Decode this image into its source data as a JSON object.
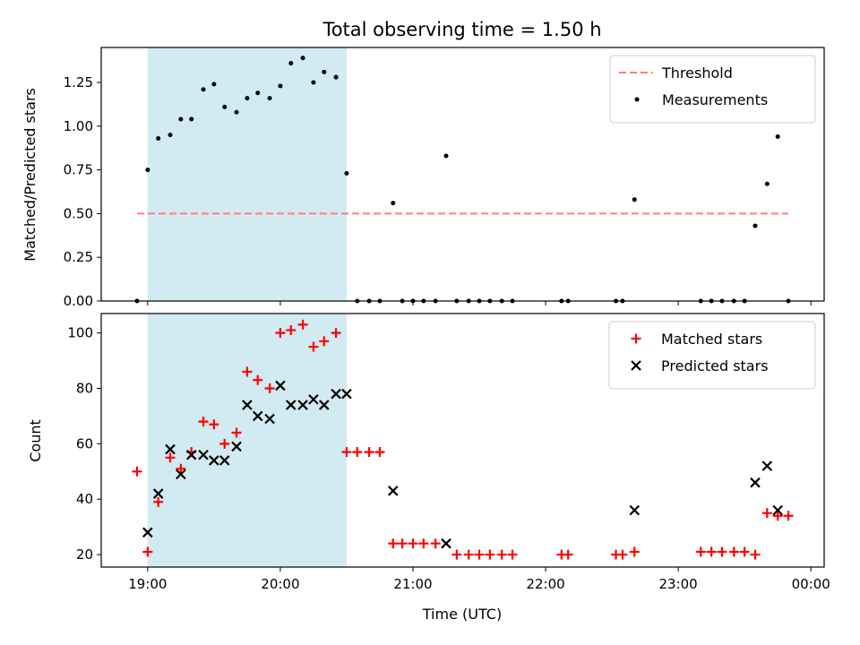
{
  "chart_data": [
    {
      "type": "scatter",
      "title": "Total observing time = 1.50 h",
      "ylabel": "Matched/Predicted stars",
      "xlabel": "",
      "ylim": [
        0,
        1.45
      ],
      "y_ticks": [
        0.0,
        0.25,
        0.5,
        0.75,
        1.0,
        1.25
      ],
      "y_tick_labels": [
        "0.00",
        "0.25",
        "0.50",
        "0.75",
        "1.00",
        "1.25"
      ],
      "x_range_hours": [
        18.65,
        24.1
      ],
      "x_ticks_hours": [
        19,
        20,
        21,
        22,
        23,
        24
      ],
      "shaded_span_hours": [
        19.0,
        20.5
      ],
      "shaded_color": "#add8e6",
      "legend_position": "upper right",
      "series": [
        {
          "name": "Threshold",
          "kind": "dashed-line",
          "color": "#ff7f7f",
          "x_hours": [
            18.92,
            23.83
          ],
          "y": [
            0.5,
            0.5
          ]
        },
        {
          "name": "Measurements",
          "kind": "dot",
          "color": "#000000",
          "x_hours": [
            18.92,
            19.0,
            19.08,
            19.17,
            19.25,
            19.33,
            19.42,
            19.5,
            19.58,
            19.67,
            19.75,
            19.83,
            19.92,
            20.0,
            20.08,
            20.17,
            20.25,
            20.33,
            20.42,
            20.5,
            20.58,
            20.67,
            20.75,
            20.85,
            20.92,
            21.0,
            21.08,
            21.17,
            21.25,
            21.33,
            21.42,
            21.5,
            21.58,
            21.67,
            21.75,
            22.12,
            22.17,
            22.53,
            22.58,
            22.67,
            23.17,
            23.25,
            23.33,
            23.42,
            23.5,
            23.58,
            23.67,
            23.75,
            23.83
          ],
          "y": [
            0.0,
            0.75,
            0.93,
            0.95,
            1.04,
            1.04,
            1.21,
            1.24,
            1.11,
            1.08,
            1.16,
            1.19,
            1.16,
            1.23,
            1.36,
            1.39,
            1.25,
            1.31,
            1.28,
            0.73,
            0.0,
            0.0,
            0.0,
            0.56,
            0.0,
            0.0,
            0.0,
            0.0,
            0.83,
            0.0,
            0.0,
            0.0,
            0.0,
            0.0,
            0.0,
            0.0,
            0.0,
            0.0,
            0.0,
            0.58,
            0.0,
            0.0,
            0.0,
            0.0,
            0.0,
            0.43,
            0.67,
            0.94,
            0.0
          ]
        }
      ]
    },
    {
      "type": "scatter",
      "xlabel": "Time (UTC)",
      "ylabel": "Count",
      "ylim": [
        15.5,
        107
      ],
      "y_ticks": [
        20,
        40,
        60,
        80,
        100
      ],
      "y_tick_labels": [
        "20",
        "40",
        "60",
        "80",
        "100"
      ],
      "x_range_hours": [
        18.65,
        24.1
      ],
      "x_ticks_hours": [
        19,
        20,
        21,
        22,
        23,
        24
      ],
      "x_tick_labels": [
        "19:00",
        "20:00",
        "21:00",
        "22:00",
        "23:00",
        "00:00"
      ],
      "shaded_span_hours": [
        19.0,
        20.5
      ],
      "shaded_color": "#add8e6",
      "legend_position": "upper right",
      "series": [
        {
          "name": "Matched stars",
          "kind": "plus",
          "color": "#ff0000",
          "x_hours": [
            18.92,
            19.0,
            19.08,
            19.17,
            19.25,
            19.33,
            19.42,
            19.5,
            19.58,
            19.67,
            19.75,
            19.83,
            19.92,
            20.0,
            20.08,
            20.17,
            20.25,
            20.33,
            20.42,
            20.5,
            20.58,
            20.67,
            20.75,
            20.85,
            20.92,
            21.0,
            21.08,
            21.17,
            21.33,
            21.42,
            21.5,
            21.58,
            21.67,
            21.75,
            22.12,
            22.17,
            22.53,
            22.58,
            22.67,
            23.17,
            23.25,
            23.33,
            23.42,
            23.5,
            23.58,
            23.67,
            23.75,
            23.83
          ],
          "y": [
            50,
            21,
            39,
            55,
            51,
            57,
            68,
            67,
            60,
            64,
            86,
            83,
            80,
            100,
            101,
            103,
            95,
            97,
            100,
            57,
            57,
            57,
            57,
            24,
            24,
            24,
            24,
            24,
            20,
            20,
            20,
            20,
            20,
            20,
            20,
            20,
            20,
            20,
            21,
            21,
            21,
            21,
            21,
            21,
            20,
            35,
            34,
            34
          ]
        },
        {
          "name": "Predicted stars",
          "kind": "x",
          "color": "#000000",
          "x_hours": [
            19.0,
            19.08,
            19.17,
            19.25,
            19.33,
            19.42,
            19.5,
            19.58,
            19.67,
            19.75,
            19.83,
            19.92,
            20.0,
            20.08,
            20.17,
            20.25,
            20.33,
            20.42,
            20.5,
            20.85,
            21.25,
            22.67,
            23.58,
            23.67,
            23.75
          ],
          "y": [
            28,
            42,
            58,
            49,
            56,
            56,
            54,
            54,
            59,
            74,
            70,
            69,
            81,
            74,
            74,
            76,
            74,
            78,
            78,
            43,
            24,
            36,
            46,
            52,
            36
          ]
        }
      ]
    }
  ]
}
